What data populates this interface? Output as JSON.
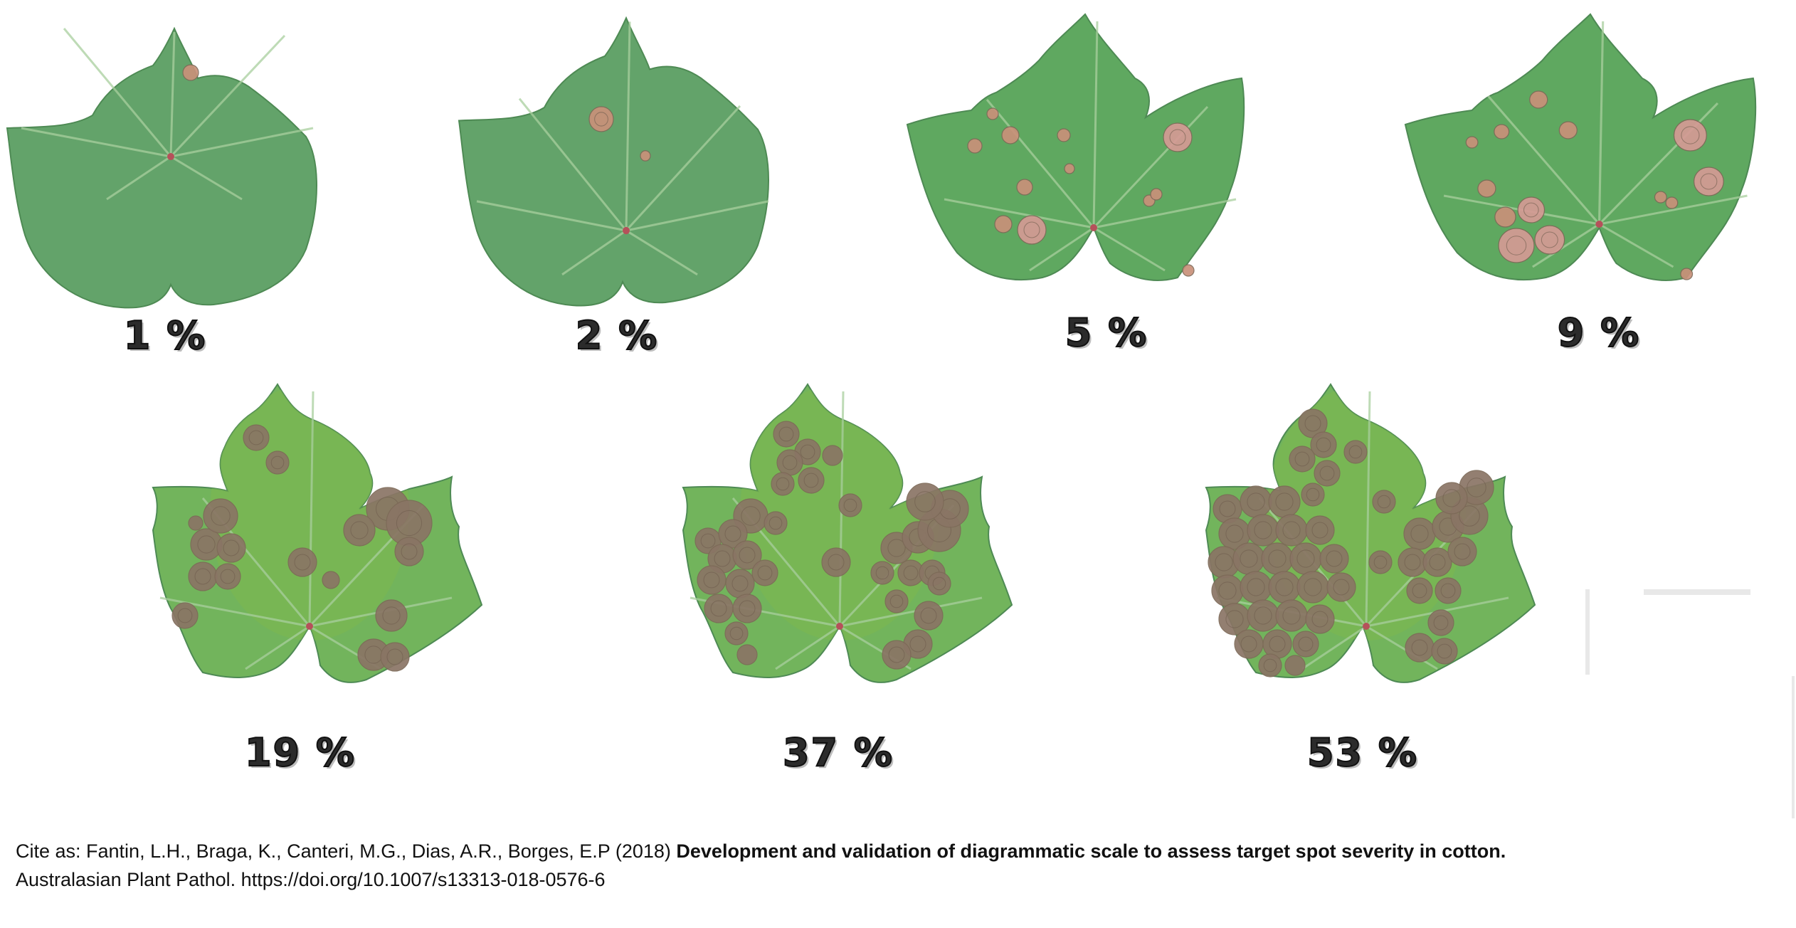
{
  "severity_levels": [
    {
      "label": "1 %",
      "value": 1,
      "lesion_style": "tan"
    },
    {
      "label": "2 %",
      "value": 2,
      "lesion_style": "tan"
    },
    {
      "label": "5 %",
      "value": 5,
      "lesion_style": "pink"
    },
    {
      "label": "9 %",
      "value": 9,
      "lesion_style": "pink"
    },
    {
      "label": "19 %",
      "value": 19,
      "lesion_style": "brown"
    },
    {
      "label": "37 %",
      "value": 37,
      "lesion_style": "brown"
    },
    {
      "label": "53 %",
      "value": 53,
      "lesion_style": "brown"
    }
  ],
  "colors": {
    "leaf_healthy": "#63a36a",
    "leaf_vein": "#a9cf9e",
    "leaf_yellowed": "#7db84f",
    "lesion_tan": "#c9917a",
    "lesion_pink": "#d59a95",
    "lesion_brown": "#8a7565",
    "petiole": "#b5515a"
  },
  "citation": {
    "prefix": "Cite as: Fantin, L.H., Braga, K., Canteri, M.G., Dias, A.R., Borges, E.P (2018) ",
    "title": "Development and validation of diagrammatic scale to assess target spot severity in cotton.",
    "line2": "Australasian Plant Pathol. https://doi.org/10.1007/s13313-018-0576-6"
  }
}
